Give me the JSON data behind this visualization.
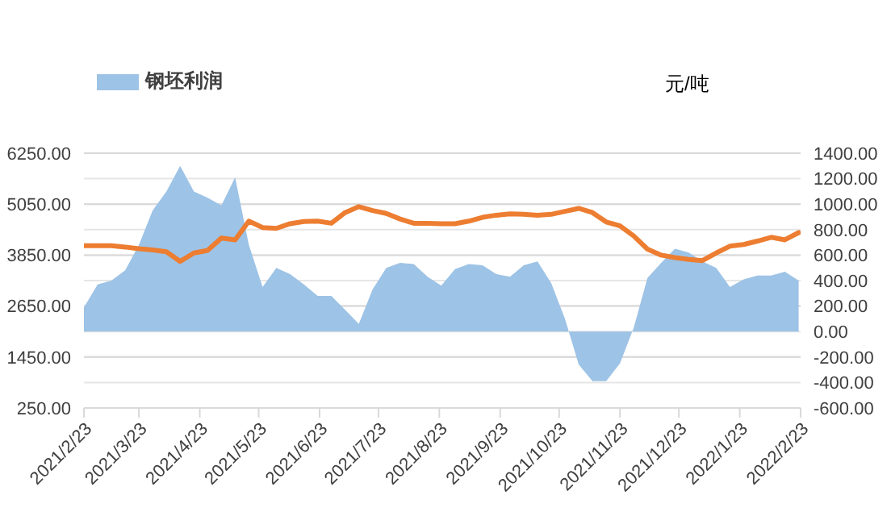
{
  "chart_data": {
    "type": "line",
    "y2label": "元/吨",
    "legend": "top left",
    "grid": "y",
    "x": [
      "2021-02-23",
      "2021-03-02",
      "2021-03-09",
      "2021-03-16",
      "2021-03-23",
      "2021-03-30",
      "2021-04-06",
      "2021-04-13",
      "2021-04-20",
      "2021-04-27",
      "2021-05-04",
      "2021-05-11",
      "2021-05-18",
      "2021-05-25",
      "2021-06-01",
      "2021-06-08",
      "2021-06-15",
      "2021-06-22",
      "2021-06-29",
      "2021-07-06",
      "2021-07-13",
      "2021-07-20",
      "2021-07-27",
      "2021-08-03",
      "2021-08-10",
      "2021-08-17",
      "2021-08-24",
      "2021-08-31",
      "2021-09-07",
      "2021-09-14",
      "2021-09-21",
      "2021-09-28",
      "2021-10-05",
      "2021-10-12",
      "2021-10-19",
      "2021-10-26",
      "2021-11-02",
      "2021-11-09",
      "2021-11-16",
      "2021-11-23",
      "2021-11-30",
      "2021-12-07",
      "2021-12-14",
      "2021-12-21",
      "2021-12-28",
      "2022-01-04",
      "2022-01-11",
      "2022-01-18",
      "2022-01-25",
      "2022-02-01",
      "2022-02-08",
      "2022-02-15",
      "2022-02-22"
    ],
    "series": [
      {
        "name": "钢坯利润",
        "type": "area",
        "axis": "y2",
        "color": "#9dc3e6",
        "values": [
          190,
          370,
          400,
          480,
          680,
          950,
          1100,
          1300,
          1100,
          1050,
          990,
          1210,
          680,
          350,
          500,
          450,
          370,
          280,
          280,
          170,
          60,
          330,
          500,
          540,
          530,
          430,
          360,
          490,
          530,
          520,
          450,
          430,
          520,
          550,
          380,
          100,
          -260,
          -390,
          -390,
          -250,
          30,
          420,
          540,
          650,
          620,
          550,
          500,
          350,
          410,
          440,
          440,
          470,
          400
        ]
      },
      {
        "color": "#ed7d31",
        "values": [
          4070,
          4070,
          4070,
          4040,
          4000,
          3970,
          3930,
          3700,
          3900,
          3960,
          4250,
          4210,
          4650,
          4500,
          4480,
          4590,
          4640,
          4650,
          4600,
          4850,
          4990,
          4900,
          4830,
          4700,
          4600,
          4600,
          4590,
          4590,
          4650,
          4740,
          4790,
          4820,
          4810,
          4790,
          4810,
          4880,
          4950,
          4850,
          4630,
          4540,
          4300,
          3990,
          3850,
          3790,
          3750,
          3720,
          3900,
          4060,
          4100,
          4180,
          4270,
          4210,
          4380
        ]
      }
    ],
    "xlim": [
      "2021-02-23",
      "2022-02-23"
    ],
    "xticks": [
      {
        "value": "2021-02-23",
        "label": "2021/2/23"
      },
      {
        "value": "2021-03-23",
        "label": "2021/3/23"
      },
      {
        "value": "2021-04-23",
        "label": "2021/4/23"
      },
      {
        "value": "2021-05-23",
        "label": "2021/5/23"
      },
      {
        "value": "2021-06-23",
        "label": "2021/6/23"
      },
      {
        "value": "2021-07-23",
        "label": "2021/7/23"
      },
      {
        "value": "2021-08-23",
        "label": "2021/8/23"
      },
      {
        "value": "2021-09-23",
        "label": "2021/9/23"
      },
      {
        "value": "2021-10-23",
        "label": "2021/10/23"
      },
      {
        "value": "2021-11-23",
        "label": "2021/11/23"
      },
      {
        "value": "2021-12-23",
        "label": "2021/12/23"
      },
      {
        "value": "2022-01-23",
        "label": "2022/1/23"
      },
      {
        "value": "2022-02-23",
        "label": "2022/2/23"
      }
    ],
    "ylim": [
      250,
      6250
    ],
    "yticks": [
      {
        "value": 250,
        "label": "250.00"
      },
      {
        "value": 1450,
        "label": "1450.00"
      },
      {
        "value": 2650,
        "label": "2650.00"
      },
      {
        "value": 3850,
        "label": "3850.00"
      },
      {
        "value": 5050,
        "label": "5050.00"
      },
      {
        "value": 6250,
        "label": "6250.00"
      }
    ],
    "y2lim": [
      -600,
      1400
    ],
    "y2ticks": [
      {
        "value": -600,
        "label": "-600.00"
      },
      {
        "value": -400,
        "label": "-400.00"
      },
      {
        "value": -200,
        "label": "-200.00"
      },
      {
        "value": 0,
        "label": "0.00"
      },
      {
        "value": 200,
        "label": "200.00"
      },
      {
        "value": 400,
        "label": "400.00"
      },
      {
        "value": 600,
        "label": "600.00"
      },
      {
        "value": 800,
        "label": "800.00"
      },
      {
        "value": 1000,
        "label": "1000.00"
      },
      {
        "value": 1200,
        "label": "1200.00"
      },
      {
        "value": 1400,
        "label": "1400.00"
      }
    ]
  }
}
